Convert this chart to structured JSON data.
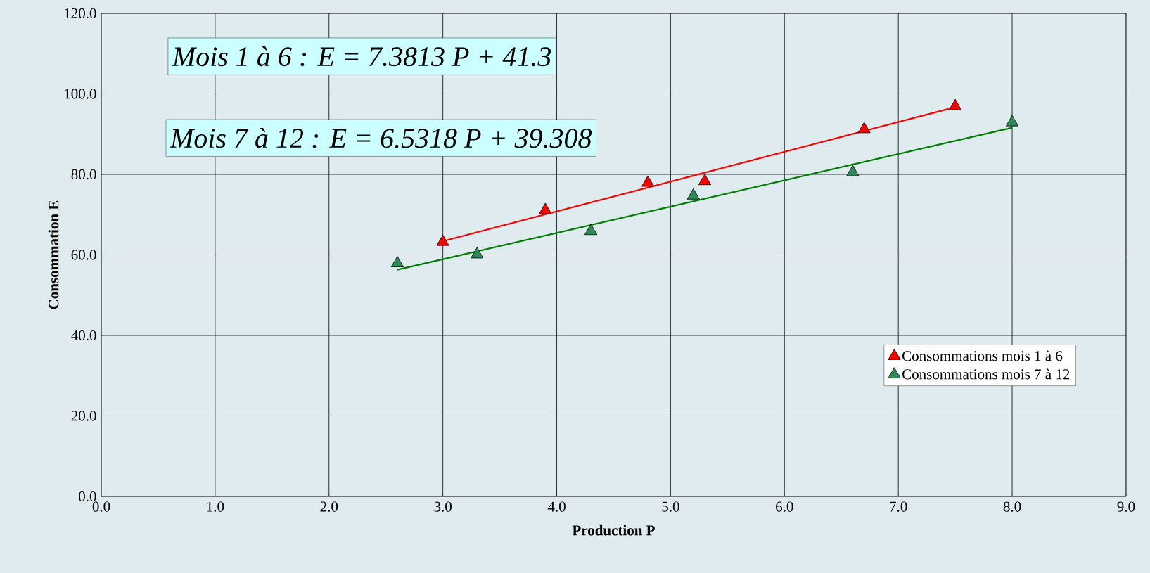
{
  "chart_data": {
    "type": "scatter",
    "xlabel": "Production P",
    "ylabel": "Consommation E",
    "annotations": [
      "Mois 1 à 6 : E = 7.3813 P + 41.3",
      "Mois 7 à 12 : E = 6.5318 P + 39.308"
    ],
    "series": [
      {
        "name": "Consommations mois 1 à 6",
        "marker": "triangle",
        "color": "#ff0000",
        "x": [
          3.0,
          3.9,
          4.8,
          5.3,
          6.7,
          7.5
        ],
        "values": [
          63.2,
          71.1,
          77.9,
          78.3,
          91.2,
          96.9
        ]
      },
      {
        "name": "Consommations mois 7 à 12",
        "marker": "triangle",
        "color": "#2e8b57",
        "x": [
          2.6,
          3.3,
          4.3,
          5.2,
          6.6,
          8.0
        ],
        "values": [
          57.9,
          60.1,
          65.9,
          74.7,
          80.5,
          92.9
        ]
      },
      {
        "type": "line",
        "marker": "none",
        "color": "#ff0000",
        "x": [
          3.0,
          7.5
        ],
        "values": [
          63.4,
          96.7
        ]
      },
      {
        "type": "line",
        "marker": "none",
        "color": "#008000",
        "x": [
          2.6,
          8.0
        ],
        "values": [
          56.3,
          91.6
        ]
      }
    ],
    "xlim": [
      0,
      9
    ],
    "ylim": [
      0,
      120
    ],
    "xticks": [
      {
        "value": 0,
        "label": "0.0"
      },
      {
        "value": 1,
        "label": "1.0"
      },
      {
        "value": 2,
        "label": "2.0"
      },
      {
        "value": 3,
        "label": "3.0"
      },
      {
        "value": 4,
        "label": "4.0"
      },
      {
        "value": 5,
        "label": "5.0"
      },
      {
        "value": 6,
        "label": "6.0"
      },
      {
        "value": 7,
        "label": "7.0"
      },
      {
        "value": 8,
        "label": "8.0"
      },
      {
        "value": 9,
        "label": "9.0"
      }
    ],
    "yticks": [
      {
        "value": 0,
        "label": "0.0"
      },
      {
        "value": 20,
        "label": "20.0"
      },
      {
        "value": 40,
        "label": "40.0"
      },
      {
        "value": 60,
        "label": "60.0"
      },
      {
        "value": 80,
        "label": "80.0"
      },
      {
        "value": 100,
        "label": "100.0"
      },
      {
        "value": 120,
        "label": "120.0"
      }
    ],
    "grid": true,
    "legend": "right"
  }
}
